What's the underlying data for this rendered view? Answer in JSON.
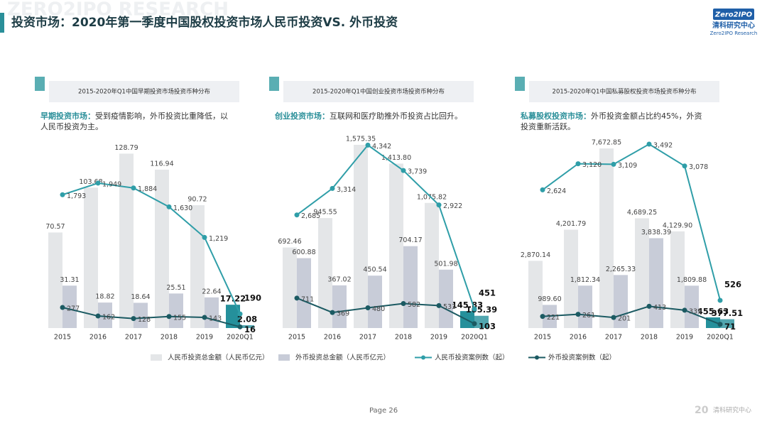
{
  "header": {
    "title": "投资市场：2020年第一季度中国股权投资市场人民币投资VS. 外币投资",
    "logo_brand": "Zero2IPO",
    "logo_name": "清科研究中心",
    "logo_sub": "Zero2IPO Research",
    "watermark": "ZERO2IPO RESEARCH"
  },
  "chart_data": [
    {
      "type": "bar",
      "title": "2015-2020年Q1中国早期投资市场投资币种分布",
      "note_lead": "早期投资市场：",
      "note_text": "受到疫情影响，外币投资比重降低，以人民币投资为主。",
      "categories": [
        "2015",
        "2016",
        "2017",
        "2018",
        "2019",
        "2020Q1"
      ],
      "ylim": [
        0,
        140
      ],
      "y2lim": [
        0,
        2550
      ],
      "highlight_color": "#25909b",
      "series": [
        {
          "type": "bar",
          "color": "#e4e6e8",
          "values": [
            70.57,
            103.68,
            128.79,
            116.94,
            90.72,
            17.22
          ],
          "value_labels": [
            "70.57",
            "103.68",
            "128.79",
            "116.94",
            "90.72",
            "17.22"
          ]
        },
        {
          "type": "bar",
          "color": "#c8ccd8",
          "values": [
            31.31,
            18.82,
            18.64,
            25.51,
            22.64,
            2.08
          ],
          "value_labels": [
            "31.31",
            "18.82",
            "18.64",
            "25.51",
            "22.64",
            "2.08"
          ]
        },
        {
          "type": "line",
          "axis": "y2",
          "color": "#2f9ea8",
          "values": [
            1793,
            1949,
            1884,
            1630,
            1219,
            190
          ],
          "value_labels": [
            "1,793",
            "1,949",
            "1,884",
            "1,630",
            "1,219",
            "190"
          ]
        },
        {
          "type": "line",
          "axis": "y2",
          "color": "#1b5a62",
          "values": [
            277,
            162,
            128,
            155,
            143,
            16
          ],
          "value_labels": [
            "277",
            "162",
            "128",
            "155",
            "143",
            "16"
          ]
        }
      ]
    },
    {
      "type": "bar",
      "title": "2015-2020年Q1中国创业投资市场投资币种分布",
      "note_lead": "创业投资市场：",
      "note_text": "互联网和医疗助推外币投资占比回升。",
      "categories": [
        "2015",
        "2016",
        "2017",
        "2018",
        "2019",
        "2020Q1"
      ],
      "ylim": [
        0,
        1630
      ],
      "y2lim": [
        0,
        4500
      ],
      "highlight_color": "#25909b",
      "series": [
        {
          "type": "bar",
          "color": "#e4e6e8",
          "values": [
            692.46,
            945.55,
            1575.35,
            1413.8,
            1075.82,
            145.83
          ],
          "value_labels": [
            "692.46",
            "945.55",
            "1,575.35",
            "1,413.80",
            "1,075.82",
            "145.83"
          ]
        },
        {
          "type": "bar",
          "color": "#c8ccd8",
          "values": [
            600.88,
            367.02,
            450.54,
            704.17,
            501.98,
            105.39
          ],
          "value_labels": [
            "600.88",
            "367.02",
            "450.54",
            "704.17",
            "501.98",
            "105.39"
          ]
        },
        {
          "type": "line",
          "axis": "y2",
          "color": "#2f9ea8",
          "values": [
            2685,
            3314,
            4342,
            3739,
            2922,
            451
          ],
          "value_labels": [
            "2,685",
            "3,314",
            "4,342",
            "3,739",
            "2,922",
            "451"
          ]
        },
        {
          "type": "line",
          "axis": "y2",
          "color": "#1b5a62",
          "values": [
            711,
            369,
            480,
            582,
            533,
            103
          ],
          "value_labels": [
            "711",
            "369",
            "480",
            "582",
            "533",
            "103"
          ]
        }
      ]
    },
    {
      "type": "bar",
      "title": "2015-2020年Q1中国私募股权投资市场投资币种分布",
      "note_lead": "私募股权投资市场：",
      "note_text": "外币投资金额占比约45%，外资投资重新活跃。",
      "categories": [
        "2015",
        "2016",
        "2017",
        "2018",
        "2019",
        "2020Q1"
      ],
      "ylim": [
        0,
        8100
      ],
      "y2lim": [
        0,
        3600
      ],
      "highlight_color": "#25909b",
      "series": [
        {
          "type": "bar",
          "color": "#e4e6e8",
          "values": [
            2870.14,
            4201.79,
            7672.85,
            4689.25,
            4129.9,
            455.63
          ],
          "value_labels": [
            "2,870.14",
            "4,201.79",
            "7,672.85",
            "4,689.25",
            "4,129.90",
            "455.63"
          ]
        },
        {
          "type": "bar",
          "color": "#c8ccd8",
          "values": [
            989.6,
            1812.34,
            2265.33,
            3838.39,
            1809.88,
            377.51
          ],
          "value_labels": [
            "989.60",
            "1,812.34",
            "2,265.33",
            "3,838.39",
            "1,809.88",
            "377.51"
          ]
        },
        {
          "type": "line",
          "axis": "y2",
          "color": "#2f9ea8",
          "values": [
            2624,
            3120,
            3109,
            3492,
            3078,
            526
          ],
          "value_labels": [
            "2,624",
            "3,120",
            "3,109",
            "3,492",
            "3,078",
            "526"
          ]
        },
        {
          "type": "line",
          "axis": "y2",
          "color": "#1b5a62",
          "values": [
            221,
            261,
            201,
            413,
            339,
            71
          ],
          "value_labels": [
            "221",
            "261",
            "201",
            "413",
            "339",
            "71"
          ]
        }
      ]
    }
  ],
  "legend": [
    "人民币投资总金额（人民币亿元）",
    "外币投资总金额（人民币亿元）",
    "人民币投资案例数（起）",
    "外币投资案例数（起）"
  ],
  "footer": {
    "page": "Page  26",
    "logo_text": "清科研究中心"
  }
}
